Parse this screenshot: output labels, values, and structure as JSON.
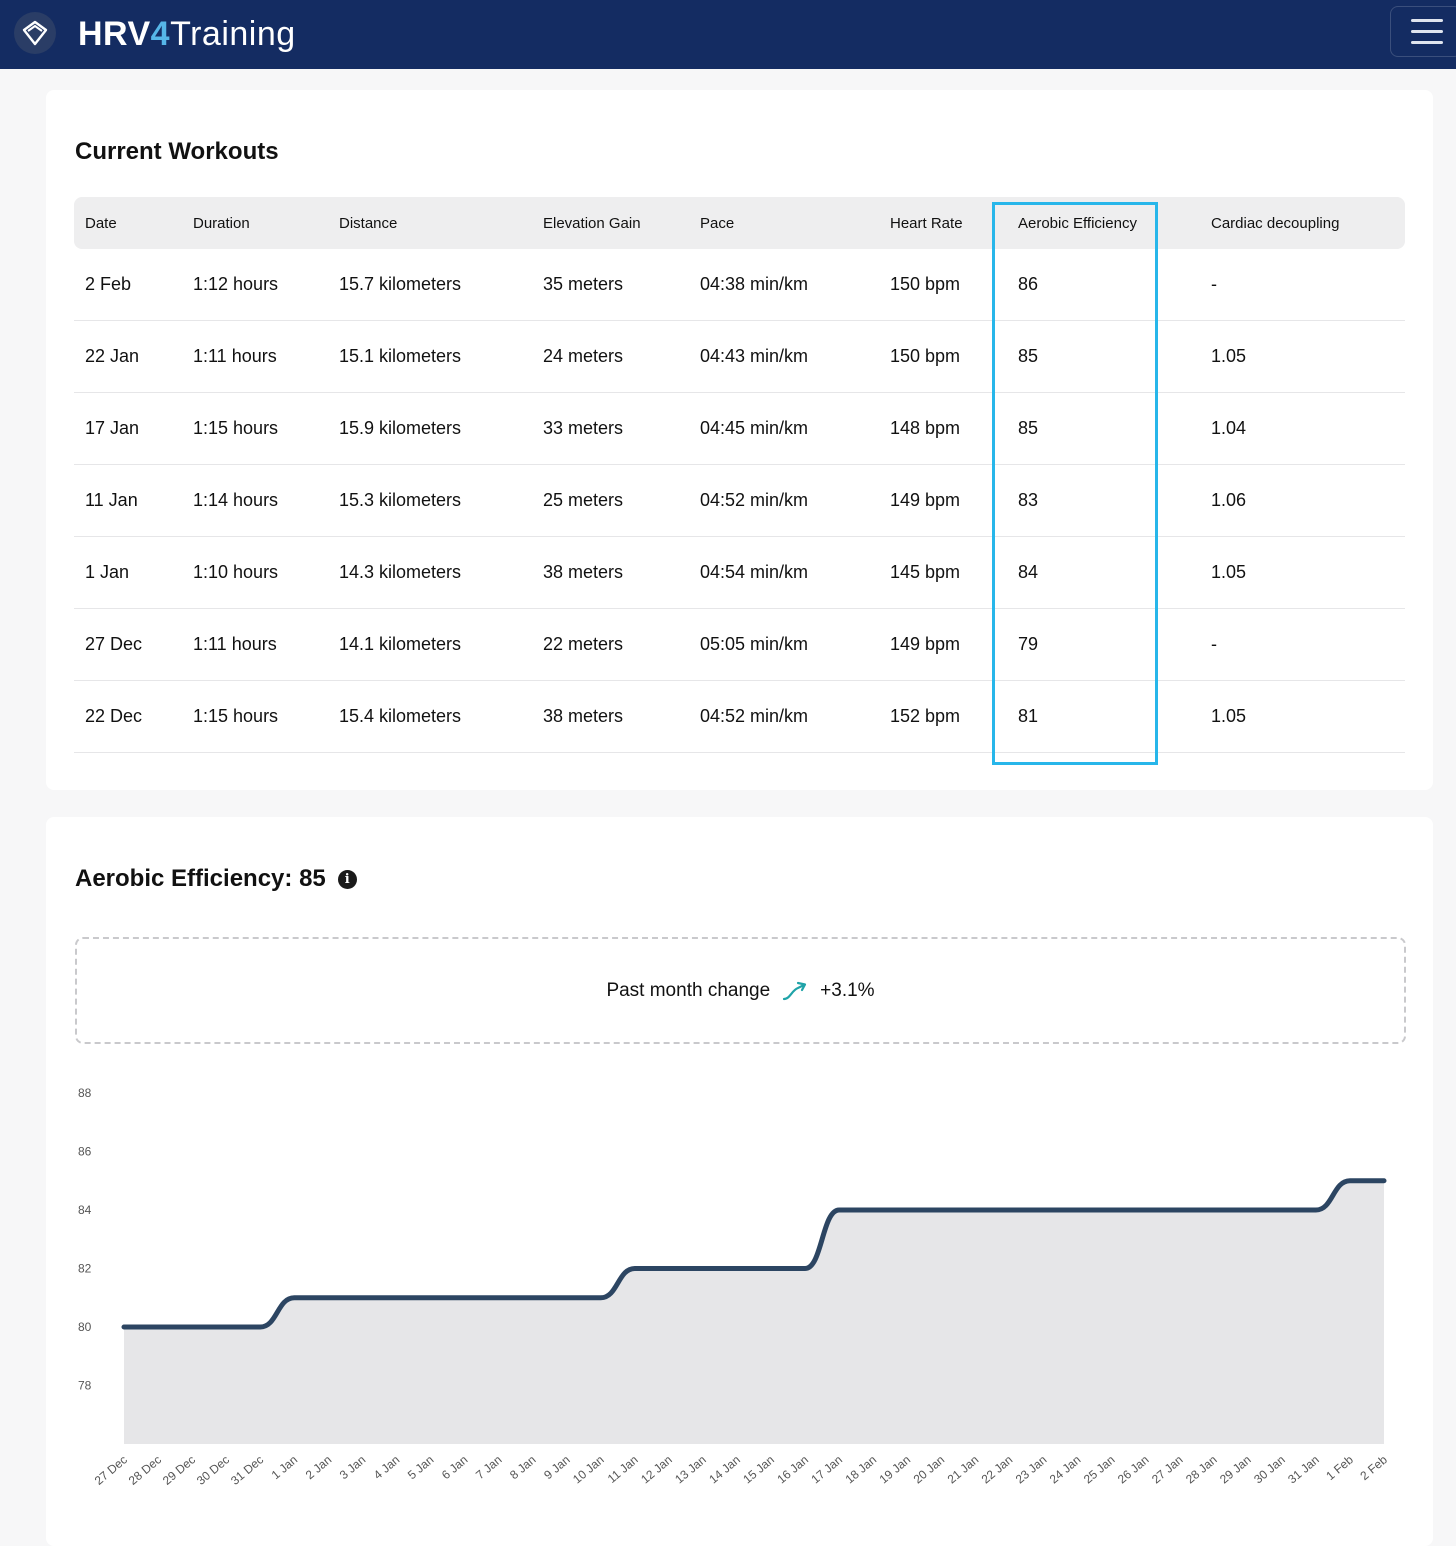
{
  "header": {
    "brand_part1": "HRV",
    "brand_part2": "4",
    "brand_part3": "Training",
    "logo_icon": "heart-shield-icon",
    "menu_icon": "hamburger-menu-icon"
  },
  "workouts": {
    "title": "Current Workouts",
    "columns": [
      "Date",
      "Duration",
      "Distance",
      "Elevation Gain",
      "Pace",
      "Heart Rate",
      "Aerobic Efficiency",
      "Cardiac decoupling"
    ],
    "rows": [
      [
        "2 Feb",
        "1:12 hours",
        "15.7 kilometers",
        "35 meters",
        "04:38 min/km",
        "150 bpm",
        "86",
        "-"
      ],
      [
        "22 Jan",
        "1:11 hours",
        "15.1 kilometers",
        "24 meters",
        "04:43 min/km",
        "150 bpm",
        "85",
        "1.05"
      ],
      [
        "17 Jan",
        "1:15 hours",
        "15.9 kilometers",
        "33 meters",
        "04:45 min/km",
        "148 bpm",
        "85",
        "1.04"
      ],
      [
        "11 Jan",
        "1:14 hours",
        "15.3 kilometers",
        "25 meters",
        "04:52 min/km",
        "149 bpm",
        "83",
        "1.06"
      ],
      [
        "1 Jan",
        "1:10 hours",
        "14.3 kilometers",
        "38 meters",
        "04:54 min/km",
        "145 bpm",
        "84",
        "1.05"
      ],
      [
        "27 Dec",
        "1:11 hours",
        "14.1 kilometers",
        "22 meters",
        "05:05 min/km",
        "149 bpm",
        "79",
        "-"
      ],
      [
        "22 Dec",
        "1:15 hours",
        "15.4 kilometers",
        "38 meters",
        "04:52 min/km",
        "152 bpm",
        "81",
        "1.05"
      ]
    ],
    "highlight_color": "#27b6ea"
  },
  "aerobic": {
    "title": "Aerobic Efficiency: 85",
    "info_icon": "info-icon",
    "change_label": "Past month change",
    "change_value": "+3.1%",
    "trend_icon": "trend-up-icon",
    "trend_color": "#1fa3a8"
  },
  "chart_data": {
    "type": "area",
    "x": [
      "27 Dec",
      "28 Dec",
      "29 Dec",
      "30 Dec",
      "31 Dec",
      "1 Jan",
      "2 Jan",
      "3 Jan",
      "4 Jan",
      "5 Jan",
      "6 Jan",
      "7 Jan",
      "8 Jan",
      "9 Jan",
      "10 Jan",
      "11 Jan",
      "12 Jan",
      "13 Jan",
      "14 Jan",
      "15 Jan",
      "16 Jan",
      "17 Jan",
      "18 Jan",
      "19 Jan",
      "20 Jan",
      "21 Jan",
      "22 Jan",
      "23 Jan",
      "24 Jan",
      "25 Jan",
      "26 Jan",
      "27 Jan",
      "28 Jan",
      "29 Jan",
      "30 Jan",
      "31 Jan",
      "1 Feb",
      "2 Feb"
    ],
    "values": [
      80,
      80,
      80,
      80,
      80,
      81,
      81,
      81,
      81,
      81,
      81,
      81,
      81,
      81,
      81,
      82,
      82,
      82,
      82,
      82,
      82,
      84,
      84,
      84,
      84,
      84,
      84,
      84,
      84,
      84,
      84,
      84,
      84,
      84,
      84,
      84,
      85,
      85
    ],
    "yticks": [
      78,
      80,
      82,
      84,
      86,
      88
    ],
    "ylim": [
      76,
      88
    ],
    "line_color": "#2c4562",
    "fill_color": "#e6e6e8",
    "grid": false,
    "legend": "none"
  }
}
